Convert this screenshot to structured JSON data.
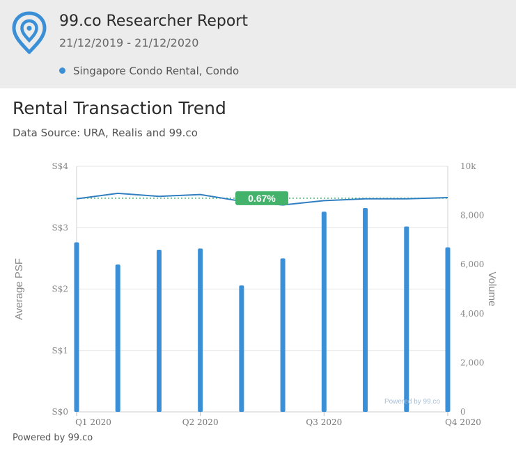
{
  "header": {
    "title": "99.co Researcher Report",
    "date_range": "21/12/2019 - 21/12/2020",
    "legend_label": "Singapore Condo Rental, Condo",
    "logo_icon": "location-pin-icon"
  },
  "section": {
    "title": "Rental Transaction Trend",
    "subtitle": "Data Source: URA, Realis and 99.co"
  },
  "footer": {
    "powered_by": "Powered by 99.co"
  },
  "colors": {
    "accent": "#3a8fd6",
    "line": "#2f7fc1",
    "badge": "#43b26a",
    "header_bg": "#ececec"
  },
  "chart_data": {
    "type": "bar+line",
    "x_tick_labels": [
      "Q1 2020",
      "Q2 2020",
      "Q3 2020",
      "Q4 2020"
    ],
    "y_left": {
      "label": "Average PSF",
      "ticks": [
        "S$0",
        "S$1",
        "S$2",
        "S$3",
        "S$4"
      ],
      "range": [
        0,
        4
      ]
    },
    "y_right": {
      "label": "Volume",
      "ticks": [
        "0",
        "2,000",
        "4,000",
        "6,000",
        "8,000",
        "10k"
      ],
      "range": [
        0,
        10000
      ]
    },
    "series": [
      {
        "type": "bar",
        "axis": "right",
        "values": [
          6900,
          6000,
          6600,
          6650,
          5150,
          6250,
          8150,
          8300,
          7550,
          6700
        ]
      },
      {
        "type": "line",
        "axis": "left",
        "values": [
          3.47,
          3.56,
          3.51,
          3.54,
          3.43,
          3.37,
          3.44,
          3.47,
          3.47,
          3.49
        ]
      }
    ],
    "reference_line": {
      "value": 3.48,
      "axis": "left",
      "style": "dotted"
    },
    "change_badge": "0.67%",
    "watermark": "Powered by 99.co",
    "grid": true
  }
}
